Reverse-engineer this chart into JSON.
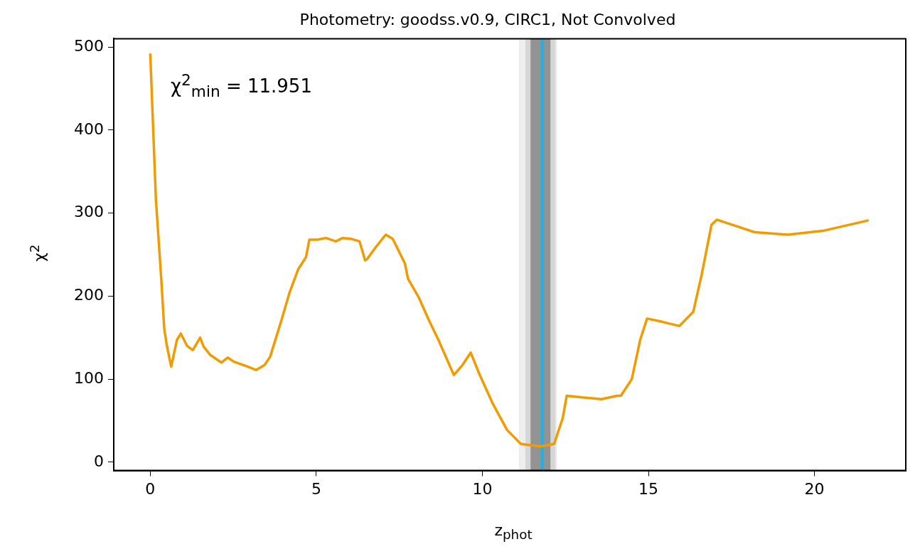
{
  "chart_data": {
    "type": "line",
    "title": "Photometry: goodss.v0.9, CIRC1, Not Convolved",
    "xlabel": "z$_{phot}$",
    "ylabel": "χ$^{2}$",
    "annotations": [
      "χ$^{2}$$_{min}$ = 11.951"
    ],
    "x": [
      0,
      0.17,
      0.34,
      0.42,
      0.5,
      0.63,
      0.8,
      0.92,
      1.11,
      1.28,
      1.5,
      1.61,
      1.81,
      2.14,
      2.33,
      2.52,
      2.94,
      3.19,
      3.44,
      3.61,
      3.95,
      4.2,
      4.45,
      4.69,
      4.79,
      5.04,
      5.29,
      5.59,
      5.79,
      6.05,
      6.3,
      6.47,
      6.54,
      6.79,
      7.09,
      7.3,
      7.67,
      7.76,
      8.09,
      8.39,
      8.68,
      9.14,
      9.4,
      9.65,
      9.9,
      10.32,
      10.74,
      11.16,
      11.75,
      12.16,
      12.42,
      12.54,
      13.0,
      13.59,
      14.06,
      14.17,
      14.5,
      14.75,
      14.96,
      15.42,
      15.93,
      16.35,
      16.6,
      16.9,
      17.06,
      18.2,
      19.2,
      20.3,
      21.6
    ],
    "series": [
      {
        "color": "#f29b00",
        "values": [
          491,
          316,
          215,
          161,
          140,
          115,
          147,
          155,
          140,
          135,
          150,
          139,
          129,
          120,
          126,
          121,
          115,
          111,
          117,
          127,
          171,
          205,
          232,
          247,
          268,
          268,
          270,
          266,
          270,
          269,
          266,
          243,
          245,
          259,
          274,
          269,
          239,
          221,
          198,
          171,
          147,
          105,
          117,
          132,
          107,
          70,
          39,
          22,
          19,
          22,
          53,
          80,
          78,
          76,
          80,
          80,
          100,
          147,
          173,
          169,
          164,
          181,
          225,
          286,
          292,
          277,
          274,
          279,
          291
        ]
      }
    ],
    "xlim": [
      -1.1,
      22.75
    ],
    "ylim": [
      -10,
      510
    ],
    "xticks": [
      0,
      5,
      10,
      15,
      20
    ],
    "yticks": [
      0,
      100,
      200,
      300,
      400,
      500
    ],
    "bands": [
      {
        "axis": "x",
        "from": 11.1,
        "to": 12.25,
        "color": "#eeeeee"
      },
      {
        "axis": "x",
        "from": 11.3,
        "to": 12.2,
        "color": "#d6d6d6"
      },
      {
        "axis": "x",
        "from": 11.45,
        "to": 12.05,
        "color": "#939393"
      }
    ],
    "ref_lines": [
      {
        "axis": "x",
        "value": 11.8,
        "color": "#1db3e8"
      }
    ],
    "grid": false,
    "legend": false,
    "marker": "none",
    "line_style": "solid"
  }
}
